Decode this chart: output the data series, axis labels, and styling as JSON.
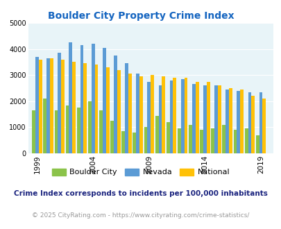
{
  "title": "Boulder City Property Crime Index",
  "years": [
    1999,
    2000,
    2001,
    2002,
    2003,
    2004,
    2005,
    2006,
    2007,
    2008,
    2009,
    2010,
    2011,
    2012,
    2013,
    2014,
    2015,
    2016,
    2017,
    2018,
    2019
  ],
  "boulder_city_vals": [
    1650,
    2100,
    1650,
    1850,
    1750,
    2000,
    1650,
    1250,
    850,
    800,
    1000,
    1450,
    1200,
    950,
    1100,
    900,
    950,
    1100,
    900,
    950,
    700
  ],
  "nevada_vals": [
    3700,
    3650,
    3850,
    4250,
    4150,
    4200,
    4050,
    3750,
    3450,
    3050,
    2750,
    2600,
    2800,
    2850,
    2650,
    2600,
    2600,
    2450,
    2400,
    2350,
    2330
  ],
  "national_vals": [
    3600,
    3650,
    3600,
    3500,
    3450,
    3400,
    3300,
    3200,
    3050,
    2950,
    3000,
    2950,
    2900,
    2900,
    2750,
    2750,
    2600,
    2500,
    2450,
    2200,
    2100
  ],
  "color_boulder": "#8bc34a",
  "color_nevada": "#5b9bd5",
  "color_national": "#ffc107",
  "bg_color": "#e8f4f8",
  "title_color": "#1565c0",
  "ylim": [
    0,
    5000
  ],
  "yticks": [
    0,
    1000,
    2000,
    3000,
    4000,
    5000
  ],
  "xtick_labels": [
    "1999",
    "2004",
    "2009",
    "2014",
    "2019"
  ],
  "xtick_positions": [
    1999,
    2004,
    2009,
    2014,
    2019
  ],
  "footnote1": "Crime Index corresponds to incidents per 100,000 inhabitants",
  "footnote2": "© 2025 CityRating.com - https://www.cityrating.com/crime-statistics/",
  "footnote1_color": "#1a237e",
  "footnote2_color": "#999999"
}
